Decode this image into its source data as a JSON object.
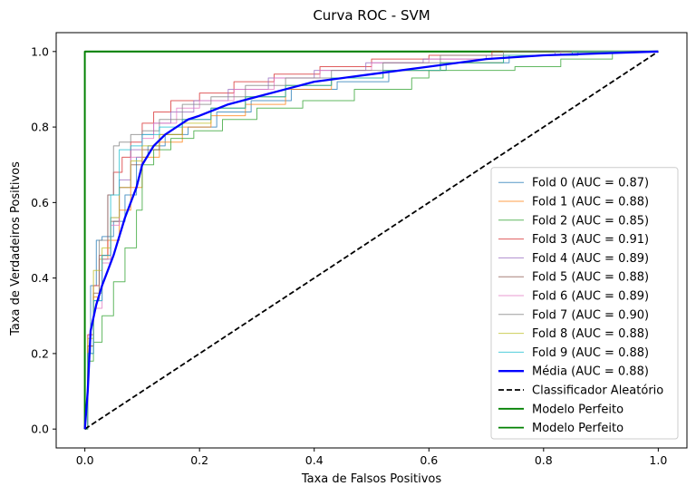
{
  "chart_data": {
    "type": "line",
    "title": "Curva ROC - SVM",
    "xlabel": "Taxa de Falsos Positivos",
    "ylabel": "Taxa de Verdadeiros Positivos",
    "xlim": [
      -0.05,
      1.05
    ],
    "ylim": [
      -0.05,
      1.05
    ],
    "xticks": [
      "0.0",
      "0.2",
      "0.4",
      "0.6",
      "0.8",
      "1.0"
    ],
    "yticks": [
      "0.0",
      "0.2",
      "0.4",
      "0.6",
      "0.8",
      "1.0"
    ],
    "grid": false,
    "legend_position": "lower-right",
    "series": [
      {
        "name": "Fold 0 (AUC = 0.87)",
        "color": "#1f77b4",
        "style": "step",
        "x": [
          0,
          0.005,
          0.005,
          0.01,
          0.01,
          0.02,
          0.02,
          0.03,
          0.03,
          0.05,
          0.05,
          0.07,
          0.07,
          0.09,
          0.09,
          0.11,
          0.11,
          0.14,
          0.14,
          0.18,
          0.18,
          0.23,
          0.23,
          0.29,
          0.29,
          0.36,
          0.36,
          0.44,
          0.44,
          0.53,
          0.53,
          0.63,
          0.63,
          0.74,
          0.74,
          0.86,
          0.86,
          1.0
        ],
        "y": [
          0,
          0,
          0.2,
          0.2,
          0.38,
          0.38,
          0.5,
          0.5,
          0.51,
          0.51,
          0.55,
          0.55,
          0.62,
          0.62,
          0.72,
          0.72,
          0.75,
          0.75,
          0.78,
          0.78,
          0.8,
          0.8,
          0.84,
          0.84,
          0.87,
          0.87,
          0.9,
          0.9,
          0.92,
          0.92,
          0.95,
          0.95,
          0.97,
          0.97,
          0.99,
          0.99,
          1.0,
          1.0
        ]
      },
      {
        "name": "Fold 1 (AUC = 0.88)",
        "color": "#ff7f0e",
        "style": "step",
        "x": [
          0,
          0.005,
          0.005,
          0.015,
          0.015,
          0.025,
          0.025,
          0.04,
          0.04,
          0.06,
          0.06,
          0.08,
          0.08,
          0.1,
          0.1,
          0.13,
          0.13,
          0.17,
          0.17,
          0.22,
          0.22,
          0.28,
          0.28,
          0.35,
          0.35,
          0.43,
          0.43,
          0.52,
          0.52,
          0.62,
          0.62,
          0.73,
          0.73,
          0.85,
          0.85,
          1.0
        ],
        "y": [
          0,
          0,
          0.22,
          0.22,
          0.35,
          0.35,
          0.45,
          0.45,
          0.5,
          0.5,
          0.58,
          0.58,
          0.64,
          0.64,
          0.72,
          0.72,
          0.76,
          0.76,
          0.8,
          0.8,
          0.83,
          0.83,
          0.86,
          0.86,
          0.9,
          0.9,
          0.93,
          0.93,
          0.95,
          0.95,
          0.97,
          0.97,
          0.99,
          0.99,
          1.0,
          1.0
        ]
      },
      {
        "name": "Fold 2 (AUC = 0.85)",
        "color": "#2ca02c",
        "style": "step",
        "x": [
          0,
          0.005,
          0.005,
          0.015,
          0.015,
          0.03,
          0.03,
          0.05,
          0.05,
          0.07,
          0.07,
          0.09,
          0.09,
          0.1,
          0.1,
          0.12,
          0.12,
          0.15,
          0.15,
          0.19,
          0.19,
          0.24,
          0.24,
          0.3,
          0.3,
          0.38,
          0.38,
          0.47,
          0.47,
          0.57,
          0.57,
          0.6,
          0.6,
          0.75,
          0.75,
          0.83,
          0.83,
          0.92,
          0.92,
          1.0
        ],
        "y": [
          0,
          0,
          0.18,
          0.18,
          0.23,
          0.23,
          0.3,
          0.3,
          0.39,
          0.39,
          0.48,
          0.48,
          0.58,
          0.58,
          0.7,
          0.7,
          0.74,
          0.74,
          0.77,
          0.77,
          0.79,
          0.79,
          0.82,
          0.82,
          0.85,
          0.85,
          0.87,
          0.87,
          0.9,
          0.9,
          0.93,
          0.93,
          0.95,
          0.95,
          0.96,
          0.96,
          0.98,
          0.98,
          1.0,
          1.0
        ]
      },
      {
        "name": "Fold 3 (AUC = 0.91)",
        "color": "#d62728",
        "style": "step",
        "x": [
          0,
          0.005,
          0.005,
          0.015,
          0.015,
          0.025,
          0.025,
          0.04,
          0.04,
          0.05,
          0.05,
          0.065,
          0.065,
          0.08,
          0.08,
          0.1,
          0.1,
          0.12,
          0.12,
          0.15,
          0.15,
          0.2,
          0.2,
          0.26,
          0.26,
          0.33,
          0.33,
          0.41,
          0.41,
          0.5,
          0.5,
          0.6,
          0.6,
          0.71,
          0.71,
          0.83,
          0.83,
          1.0
        ],
        "y": [
          0,
          0,
          0.25,
          0.25,
          0.38,
          0.38,
          0.46,
          0.46,
          0.62,
          0.62,
          0.68,
          0.68,
          0.72,
          0.72,
          0.76,
          0.76,
          0.81,
          0.81,
          0.84,
          0.84,
          0.87,
          0.87,
          0.89,
          0.89,
          0.92,
          0.92,
          0.94,
          0.94,
          0.96,
          0.96,
          0.98,
          0.98,
          0.99,
          0.99,
          1.0,
          1.0,
          1.0,
          1.0
        ]
      },
      {
        "name": "Fold 4 (AUC = 0.89)",
        "color": "#9467bd",
        "style": "step",
        "x": [
          0,
          0.005,
          0.005,
          0.015,
          0.015,
          0.03,
          0.03,
          0.045,
          0.045,
          0.06,
          0.06,
          0.08,
          0.08,
          0.1,
          0.1,
          0.12,
          0.12,
          0.15,
          0.15,
          0.19,
          0.19,
          0.25,
          0.25,
          0.32,
          0.32,
          0.4,
          0.4,
          0.49,
          0.49,
          0.59,
          0.59,
          0.7,
          0.7,
          0.82,
          0.82,
          1.0
        ],
        "y": [
          0,
          0,
          0.2,
          0.2,
          0.34,
          0.34,
          0.45,
          0.45,
          0.56,
          0.56,
          0.66,
          0.66,
          0.74,
          0.74,
          0.78,
          0.78,
          0.81,
          0.81,
          0.84,
          0.84,
          0.87,
          0.87,
          0.9,
          0.9,
          0.93,
          0.93,
          0.95,
          0.95,
          0.97,
          0.97,
          0.98,
          0.98,
          0.99,
          0.99,
          1.0,
          1.0
        ]
      },
      {
        "name": "Fold 5 (AUC = 0.88)",
        "color": "#8c564b",
        "style": "step",
        "x": [
          0,
          0.005,
          0.005,
          0.015,
          0.015,
          0.03,
          0.03,
          0.045,
          0.045,
          0.06,
          0.06,
          0.08,
          0.08,
          0.1,
          0.1,
          0.13,
          0.13,
          0.17,
          0.17,
          0.22,
          0.22,
          0.28,
          0.28,
          0.35,
          0.35,
          0.43,
          0.43,
          0.52,
          0.52,
          0.62,
          0.62,
          0.73,
          0.73,
          0.85,
          0.85,
          1.0
        ],
        "y": [
          0,
          0,
          0.22,
          0.22,
          0.36,
          0.36,
          0.46,
          0.46,
          0.55,
          0.55,
          0.64,
          0.64,
          0.7,
          0.7,
          0.74,
          0.74,
          0.78,
          0.78,
          0.82,
          0.82,
          0.85,
          0.85,
          0.88,
          0.88,
          0.91,
          0.91,
          0.93,
          0.93,
          0.95,
          0.95,
          0.97,
          0.97,
          0.99,
          0.99,
          1.0,
          1.0
        ]
      },
      {
        "name": "Fold 6 (AUC = 0.89)",
        "color": "#e377c2",
        "style": "step",
        "x": [
          0,
          0.005,
          0.005,
          0.015,
          0.015,
          0.03,
          0.03,
          0.045,
          0.045,
          0.06,
          0.06,
          0.08,
          0.08,
          0.1,
          0.1,
          0.12,
          0.12,
          0.16,
          0.16,
          0.2,
          0.2,
          0.26,
          0.26,
          0.33,
          0.33,
          0.41,
          0.41,
          0.5,
          0.5,
          0.6,
          0.6,
          0.71,
          0.71,
          0.83,
          0.83,
          1.0
        ],
        "y": [
          0,
          0,
          0.2,
          0.2,
          0.32,
          0.32,
          0.44,
          0.44,
          0.54,
          0.54,
          0.64,
          0.64,
          0.72,
          0.72,
          0.77,
          0.77,
          0.81,
          0.81,
          0.85,
          0.85,
          0.87,
          0.87,
          0.9,
          0.9,
          0.93,
          0.93,
          0.95,
          0.95,
          0.97,
          0.97,
          0.98,
          0.98,
          0.99,
          0.99,
          1.0,
          1.0
        ]
      },
      {
        "name": "Fold 7 (AUC = 0.90)",
        "color": "#7f7f7f",
        "style": "step",
        "x": [
          0,
          0.005,
          0.005,
          0.015,
          0.015,
          0.025,
          0.025,
          0.04,
          0.04,
          0.05,
          0.05,
          0.06,
          0.06,
          0.08,
          0.08,
          0.1,
          0.1,
          0.13,
          0.13,
          0.17,
          0.17,
          0.22,
          0.22,
          0.28,
          0.28,
          0.35,
          0.35,
          0.43,
          0.43,
          0.52,
          0.52,
          0.62,
          0.62,
          0.73,
          0.73,
          0.85,
          0.85,
          1.0
        ],
        "y": [
          0,
          0,
          0.2,
          0.2,
          0.34,
          0.34,
          0.5,
          0.5,
          0.62,
          0.62,
          0.75,
          0.75,
          0.76,
          0.76,
          0.78,
          0.78,
          0.79,
          0.79,
          0.82,
          0.82,
          0.86,
          0.86,
          0.88,
          0.88,
          0.91,
          0.91,
          0.93,
          0.93,
          0.95,
          0.95,
          0.97,
          0.97,
          0.99,
          0.99,
          1.0,
          1.0,
          1.0,
          1.0
        ]
      },
      {
        "name": "Fold 8 (AUC = 0.88)",
        "color": "#bcbd22",
        "style": "step",
        "x": [
          0,
          0.005,
          0.005,
          0.015,
          0.015,
          0.03,
          0.03,
          0.045,
          0.045,
          0.06,
          0.06,
          0.08,
          0.08,
          0.1,
          0.1,
          0.13,
          0.13,
          0.17,
          0.17,
          0.22,
          0.22,
          0.28,
          0.28,
          0.35,
          0.35,
          0.43,
          0.43,
          0.52,
          0.52,
          0.62,
          0.62,
          0.73,
          0.73,
          0.85,
          0.85,
          1.0
        ],
        "y": [
          0,
          0,
          0.24,
          0.24,
          0.42,
          0.42,
          0.48,
          0.48,
          0.56,
          0.56,
          0.64,
          0.64,
          0.71,
          0.71,
          0.75,
          0.75,
          0.78,
          0.78,
          0.81,
          0.81,
          0.85,
          0.85,
          0.88,
          0.88,
          0.91,
          0.91,
          0.93,
          0.93,
          0.95,
          0.95,
          0.97,
          0.97,
          0.99,
          0.99,
          1.0,
          1.0
        ]
      },
      {
        "name": "Fold 9 (AUC = 0.88)",
        "color": "#17becf",
        "style": "step",
        "x": [
          0,
          0.005,
          0.005,
          0.015,
          0.015,
          0.03,
          0.03,
          0.045,
          0.045,
          0.06,
          0.06,
          0.08,
          0.08,
          0.1,
          0.1,
          0.13,
          0.13,
          0.17,
          0.17,
          0.22,
          0.22,
          0.28,
          0.28,
          0.35,
          0.35,
          0.43,
          0.43,
          0.52,
          0.52,
          0.62,
          0.62,
          0.73,
          0.73,
          0.85,
          0.85,
          1.0
        ],
        "y": [
          0,
          0,
          0.2,
          0.2,
          0.34,
          0.34,
          0.46,
          0.46,
          0.62,
          0.62,
          0.74,
          0.74,
          0.75,
          0.75,
          0.78,
          0.78,
          0.8,
          0.8,
          0.82,
          0.82,
          0.85,
          0.85,
          0.88,
          0.88,
          0.91,
          0.91,
          0.93,
          0.93,
          0.95,
          0.95,
          0.97,
          0.97,
          0.99,
          0.99,
          1.0,
          1.0
        ]
      },
      {
        "name": "Média (AUC = 0.88)",
        "color": "#0000ff",
        "style": "line",
        "x": [
          0,
          0.005,
          0.01,
          0.02,
          0.03,
          0.04,
          0.05,
          0.06,
          0.07,
          0.08,
          0.09,
          0.1,
          0.12,
          0.14,
          0.16,
          0.18,
          0.2,
          0.25,
          0.3,
          0.35,
          0.4,
          0.45,
          0.5,
          0.6,
          0.7,
          0.8,
          0.9,
          1.0
        ],
        "y": [
          0,
          0.1,
          0.26,
          0.33,
          0.38,
          0.42,
          0.46,
          0.51,
          0.56,
          0.6,
          0.64,
          0.7,
          0.75,
          0.78,
          0.8,
          0.82,
          0.83,
          0.86,
          0.88,
          0.9,
          0.92,
          0.93,
          0.94,
          0.96,
          0.98,
          0.99,
          0.995,
          1.0
        ]
      },
      {
        "name": "Classificador Aleatório",
        "color": "#000000",
        "style": "dashed",
        "x": [
          0,
          1
        ],
        "y": [
          0,
          1
        ]
      },
      {
        "name": "Modelo Perfeito",
        "color": "#008000",
        "style": "line",
        "x": [
          0,
          0,
          1
        ],
        "y": [
          0,
          1,
          1
        ]
      },
      {
        "name": "Modelo Perfeito",
        "color": "#008000",
        "style": "line",
        "x": [
          0,
          0,
          1
        ],
        "y": [
          0,
          1,
          1
        ]
      }
    ]
  }
}
